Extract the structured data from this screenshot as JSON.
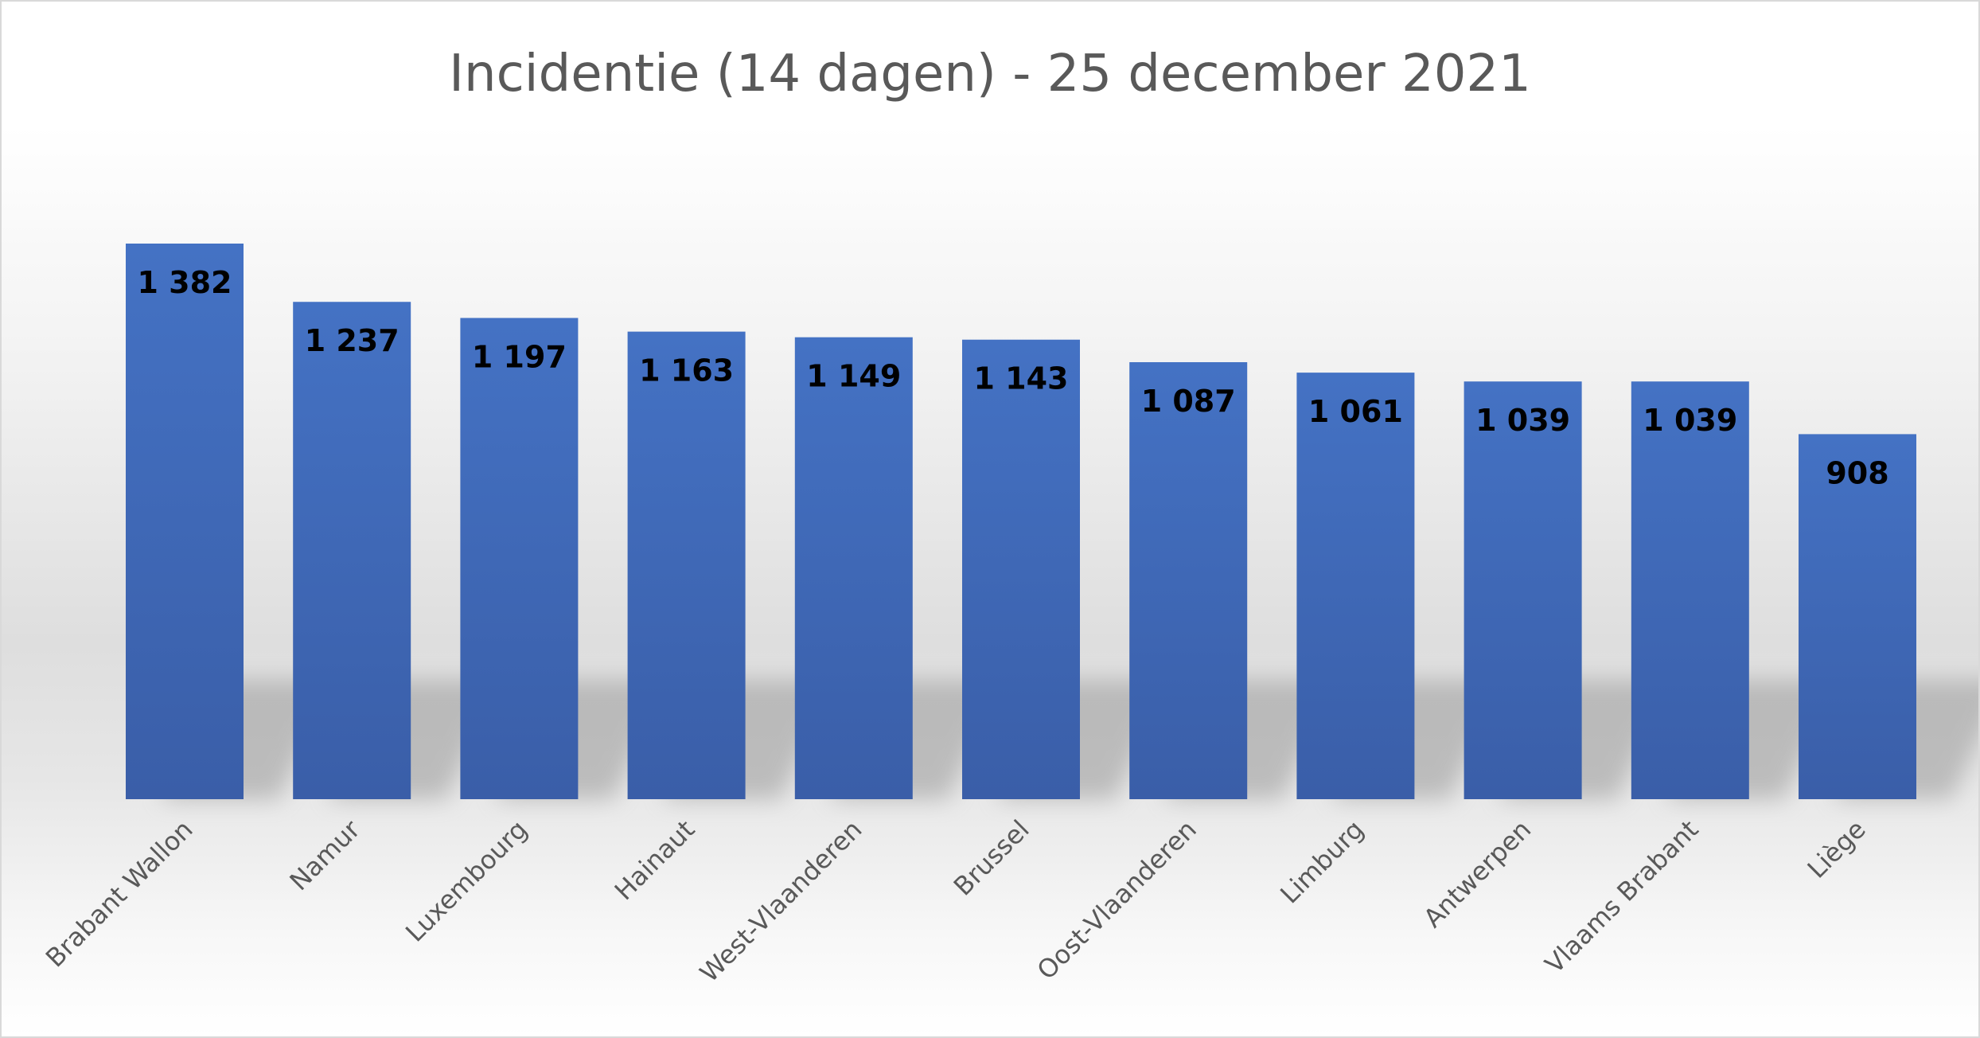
{
  "chart_data": {
    "type": "bar",
    "title": "Incidentie (14 dagen) - 25 december 2021",
    "xlabel": "",
    "ylabel": "",
    "ylim": [
      0,
      1500
    ],
    "grid": false,
    "legend": "none",
    "categories": [
      "Brabant Wallon",
      "Namur",
      "Luxembourg",
      "Hainaut",
      "West-Vlaanderen",
      "Brussel",
      "Oost-Vlaanderen",
      "Limburg",
      "Antwerpen",
      "Vlaams Brabant",
      "Liège"
    ],
    "values": [
      1382,
      1237,
      1197,
      1163,
      1149,
      1143,
      1087,
      1061,
      1039,
      1039,
      908
    ],
    "value_labels": [
      "1 382",
      "1 237",
      "1 197",
      "1 163",
      "1 149",
      "1 143",
      "1 087",
      "1 061",
      "1 039",
      "1 039",
      "908"
    ],
    "colors": {
      "bar_top": "#4472c4",
      "bar_bottom": "#3a5ea8",
      "title": "#595959",
      "label": "#000000",
      "tick": "#595959"
    }
  }
}
